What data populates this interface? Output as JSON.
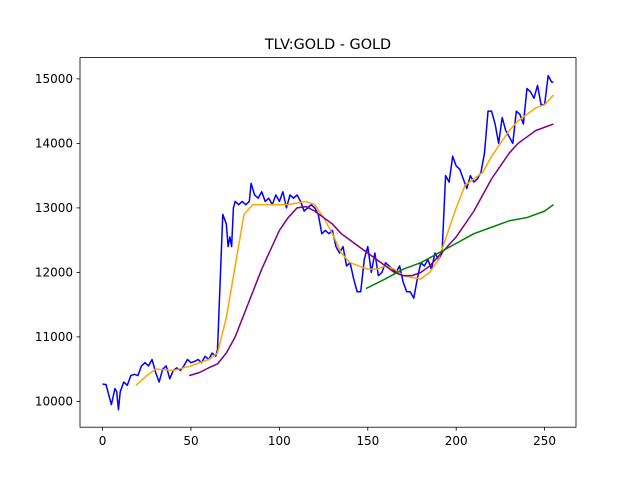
{
  "chart_data": {
    "type": "line",
    "title": "TLV:GOLD - GOLD",
    "xlim": [
      -12.75,
      267.75
    ],
    "xticks": [
      0,
      50,
      100,
      150,
      200,
      250
    ],
    "ylim": [
      9600,
      15330
    ],
    "yticks": [
      10000,
      11000,
      12000,
      13000,
      14000,
      15000
    ],
    "grid": false,
    "series": [
      {
        "color": "#0000ff",
        "x": [
          0,
          2,
          4,
          5,
          7,
          8,
          9,
          10,
          12,
          14,
          16,
          18,
          20,
          22,
          24,
          26,
          28,
          30,
          32,
          34,
          36,
          38,
          40,
          42,
          44,
          46,
          48,
          50,
          52,
          54,
          56,
          58,
          60,
          62,
          64,
          65,
          66,
          67,
          68,
          70,
          71,
          72,
          73,
          74,
          75,
          77,
          79,
          81,
          83,
          84,
          86,
          88,
          90,
          92,
          94,
          96,
          98,
          100,
          102,
          104,
          106,
          108,
          110,
          112,
          114,
          116,
          118,
          120,
          122,
          124,
          126,
          128,
          130,
          132,
          134,
          136,
          138,
          140,
          142,
          144,
          146,
          148,
          150,
          152,
          154,
          156,
          158,
          160,
          162,
          164,
          166,
          168,
          170,
          172,
          174,
          176,
          178,
          180,
          182,
          184,
          186,
          188,
          190,
          192,
          194,
          196,
          198,
          200,
          202,
          204,
          206,
          208,
          210,
          212,
          214,
          216,
          218,
          220,
          222,
          224,
          226,
          228,
          230,
          232,
          234,
          236,
          238,
          240,
          242,
          244,
          246,
          248,
          250,
          252,
          254,
          255
        ],
        "values": [
          10270,
          10260,
          10050,
          9950,
          10200,
          10150,
          9870,
          10150,
          10300,
          10250,
          10400,
          10420,
          10400,
          10550,
          10600,
          10550,
          10650,
          10450,
          10300,
          10500,
          10550,
          10350,
          10480,
          10520,
          10480,
          10550,
          10650,
          10600,
          10620,
          10650,
          10600,
          10700,
          10650,
          10750,
          10700,
          10800,
          11500,
          12200,
          12900,
          12750,
          12400,
          12550,
          12400,
          13000,
          13100,
          13050,
          13100,
          13050,
          13100,
          13380,
          13200,
          13150,
          13250,
          13100,
          13150,
          13050,
          13200,
          13100,
          13250,
          13000,
          13200,
          13150,
          13200,
          13100,
          12950,
          13000,
          13050,
          13000,
          12900,
          12600,
          12650,
          12600,
          12650,
          12400,
          12300,
          12400,
          12100,
          12150,
          11900,
          11700,
          11700,
          12200,
          12400,
          12000,
          12300,
          11950,
          12000,
          12150,
          12100,
          12050,
          12000,
          12100,
          11850,
          11700,
          11700,
          11600,
          11900,
          12150,
          12100,
          12200,
          12050,
          12300,
          12200,
          12300,
          13500,
          13400,
          13800,
          13650,
          13600,
          13450,
          13300,
          13500,
          13400,
          13450,
          13550,
          13850,
          14500,
          14500,
          14300,
          14000,
          14400,
          14200,
          14100,
          14000,
          14500,
          14450,
          14300,
          14850,
          14800,
          14700,
          14900,
          14600,
          14600,
          15050,
          14950,
          14950
        ]
      },
      {
        "color": "#ffa500",
        "x": [
          19,
          25,
          30,
          40,
          50,
          60,
          65,
          70,
          75,
          80,
          85,
          95,
          105,
          115,
          120,
          125,
          130,
          135,
          140,
          145,
          150,
          155,
          160,
          165,
          170,
          175,
          180,
          185,
          190,
          195,
          200,
          205,
          210,
          215,
          220,
          225,
          230,
          235,
          240,
          245,
          250,
          255
        ],
        "values": [
          10250,
          10400,
          10500,
          10480,
          10550,
          10650,
          10750,
          11300,
          12100,
          12900,
          13050,
          13050,
          13050,
          13100,
          13050,
          12850,
          12600,
          12300,
          12150,
          12100,
          12050,
          12050,
          12100,
          12050,
          11950,
          11920,
          11900,
          12000,
          12200,
          12600,
          13000,
          13350,
          13450,
          13550,
          13800,
          14000,
          14200,
          14350,
          14450,
          14550,
          14600,
          14750
        ]
      },
      {
        "color": "#800080",
        "x": [
          49,
          55,
          60,
          65,
          70,
          75,
          80,
          85,
          90,
          95,
          100,
          105,
          110,
          115,
          120,
          125,
          130,
          135,
          140,
          145,
          150,
          155,
          160,
          165,
          170,
          175,
          180,
          185,
          190,
          195,
          200,
          205,
          210,
          215,
          220,
          225,
          230,
          235,
          240,
          245,
          250,
          255
        ],
        "values": [
          10400,
          10450,
          10520,
          10580,
          10750,
          11000,
          11350,
          11700,
          12050,
          12350,
          12650,
          12850,
          13000,
          13020,
          12950,
          12850,
          12750,
          12600,
          12500,
          12400,
          12300,
          12200,
          12100,
          12000,
          11950,
          11950,
          12000,
          12100,
          12250,
          12400,
          12550,
          12750,
          12950,
          13200,
          13450,
          13650,
          13850,
          14000,
          14100,
          14200,
          14250,
          14300
        ]
      },
      {
        "color": "#008000",
        "x": [
          149,
          160,
          170,
          180,
          190,
          200,
          210,
          220,
          230,
          240,
          250,
          255
        ],
        "values": [
          11750,
          11900,
          12050,
          12150,
          12300,
          12450,
          12600,
          12700,
          12800,
          12850,
          12950,
          13050
        ]
      }
    ]
  }
}
